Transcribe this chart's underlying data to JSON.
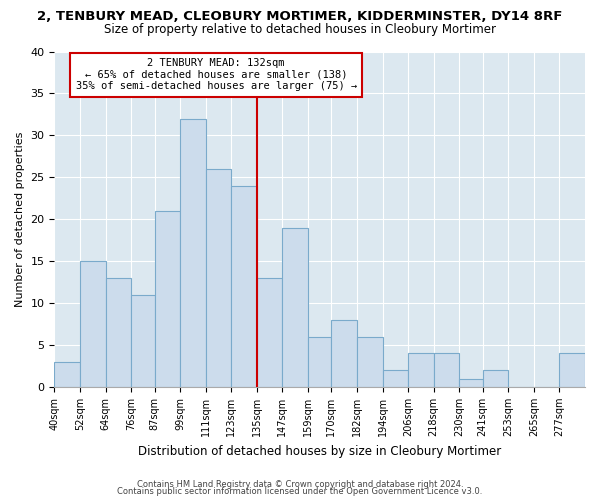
{
  "title1": "2, TENBURY MEAD, CLEOBURY MORTIMER, KIDDERMINSTER, DY14 8RF",
  "title2": "Size of property relative to detached houses in Cleobury Mortimer",
  "xlabel": "Distribution of detached houses by size in Cleobury Mortimer",
  "ylabel": "Number of detached properties",
  "bar_labels": [
    "40sqm",
    "52sqm",
    "64sqm",
    "76sqm",
    "87sqm",
    "99sqm",
    "111sqm",
    "123sqm",
    "135sqm",
    "147sqm",
    "159sqm",
    "170sqm",
    "182sqm",
    "194sqm",
    "206sqm",
    "218sqm",
    "230sqm",
    "241sqm",
    "253sqm",
    "265sqm",
    "277sqm"
  ],
  "bar_values": [
    3,
    15,
    13,
    11,
    21,
    32,
    26,
    24,
    13,
    19,
    6,
    8,
    6,
    2,
    4,
    4,
    1,
    2,
    0,
    0,
    4
  ],
  "bar_color": "#ccdcec",
  "bar_edge_color": "#7aaacb",
  "property_line_x": 135,
  "annotation_line1": "2 TENBURY MEAD: 132sqm",
  "annotation_line2": "← 65% of detached houses are smaller (138)",
  "annotation_line3": "35% of semi-detached houses are larger (75) →",
  "annotation_box_color": "#cc0000",
  "vline_color": "#cc0000",
  "ylim": [
    0,
    40
  ],
  "yticks": [
    0,
    5,
    10,
    15,
    20,
    25,
    30,
    35,
    40
  ],
  "footer1": "Contains HM Land Registry data © Crown copyright and database right 2024.",
  "footer2": "Contains public sector information licensed under the Open Government Licence v3.0.",
  "bg_color": "#ffffff",
  "plot_bg_color": "#dce8f0",
  "grid_color": "#ffffff",
  "bin_edges": [
    40,
    52,
    64,
    76,
    87,
    99,
    111,
    123,
    135,
    147,
    159,
    170,
    182,
    194,
    206,
    218,
    230,
    241,
    253,
    265,
    277,
    289
  ]
}
